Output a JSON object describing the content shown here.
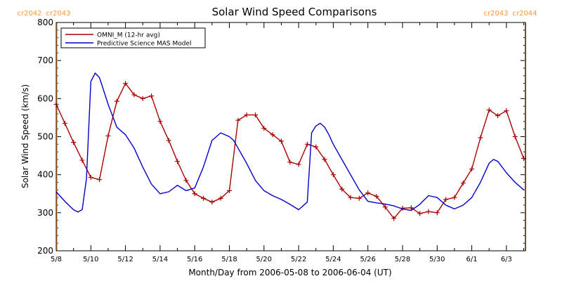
{
  "chart_data": {
    "type": "line",
    "title": "Solar Wind Speed Comparisons",
    "xlabel": "Month/Day from 2006-05-08 to 2006-06-04 (UT)",
    "ylabel": "Solar Wind Speed (km/s)",
    "ylim": [
      200,
      800
    ],
    "xlim_days": [
      0,
      27
    ],
    "y_ticks": [
      200,
      300,
      400,
      500,
      600,
      700,
      800
    ],
    "x_ticks": [
      {
        "day": 0,
        "label": "5/8"
      },
      {
        "day": 2,
        "label": "5/10"
      },
      {
        "day": 4,
        "label": "5/12"
      },
      {
        "day": 6,
        "label": "5/14"
      },
      {
        "day": 8,
        "label": "5/16"
      },
      {
        "day": 10,
        "label": "5/18"
      },
      {
        "day": 12,
        "label": "5/20"
      },
      {
        "day": 14,
        "label": "5/22"
      },
      {
        "day": 16,
        "label": "5/24"
      },
      {
        "day": 18,
        "label": "5/26"
      },
      {
        "day": 20,
        "label": "5/28"
      },
      {
        "day": 22,
        "label": "5/30"
      },
      {
        "day": 24,
        "label": "6/1"
      },
      {
        "day": 26,
        "label": "6/3"
      }
    ],
    "carrington_markers": [
      {
        "day": 0.03,
        "left_label": "cr2042",
        "right_label": "cr2043",
        "color": "#ff9933"
      },
      {
        "day": 27.1,
        "left_label": "cr2043",
        "right_label": "cr2044",
        "color": "#ff9933"
      }
    ],
    "legend_position": "top-left",
    "series": [
      {
        "name": "OMNI_M (12-hr avg)",
        "color": "#aa0000",
        "marker": "plus",
        "x": [
          0.0,
          0.5,
          1.0,
          1.5,
          2.0,
          2.5,
          3.0,
          3.5,
          4.0,
          4.5,
          5.0,
          5.5,
          6.0,
          6.5,
          7.0,
          7.5,
          8.0,
          8.5,
          9.0,
          9.5,
          10.0,
          10.5,
          11.0,
          11.5,
          12.0,
          12.5,
          13.0,
          13.5,
          14.0,
          14.5,
          15.0,
          15.5,
          16.0,
          16.5,
          17.0,
          17.5,
          18.0,
          18.5,
          19.0,
          19.5,
          20.0,
          20.5,
          21.0,
          21.5,
          22.0,
          22.5,
          23.0,
          23.5,
          24.0,
          24.5,
          25.0,
          25.5,
          26.0,
          26.5,
          27.0
        ],
        "y": [
          585,
          535,
          485,
          438,
          393,
          387,
          502,
          593,
          640,
          610,
          600,
          607,
          540,
          490,
          435,
          385,
          350,
          338,
          328,
          338,
          358,
          543,
          557,
          557,
          522,
          505,
          488,
          433,
          427,
          480,
          473,
          440,
          400,
          362,
          340,
          338,
          352,
          343,
          315,
          285,
          312,
          313,
          298,
          303,
          300,
          335,
          340,
          378,
          415,
          497,
          570,
          555,
          568,
          500,
          443
        ]
      },
      {
        "name": "Predictive Science MAS Model",
        "color": "#0000cc",
        "marker": "none",
        "x": [
          0.0,
          0.5,
          1.0,
          1.25,
          1.5,
          1.75,
          2.0,
          2.25,
          2.5,
          2.75,
          3.0,
          3.25,
          3.5,
          4.0,
          4.5,
          5.0,
          5.5,
          6.0,
          6.5,
          7.0,
          7.5,
          8.0,
          8.5,
          9.0,
          9.5,
          10.0,
          10.25,
          10.5,
          11.0,
          11.5,
          12.0,
          12.5,
          13.0,
          13.5,
          14.0,
          14.5,
          14.75,
          15.0,
          15.25,
          15.5,
          15.75,
          16.0,
          16.5,
          17.0,
          17.5,
          18.0,
          18.5,
          19.0,
          19.5,
          20.0,
          20.5,
          21.0,
          21.5,
          22.0,
          22.5,
          23.0,
          23.5,
          24.0,
          24.5,
          25.0,
          25.25,
          25.5,
          26.0,
          26.5,
          27.0
        ],
        "y": [
          355,
          330,
          308,
          302,
          308,
          390,
          645,
          667,
          655,
          620,
          585,
          555,
          525,
          505,
          470,
          420,
          375,
          350,
          355,
          372,
          358,
          365,
          420,
          490,
          510,
          500,
          490,
          470,
          430,
          385,
          358,
          345,
          335,
          322,
          308,
          328,
          510,
          528,
          535,
          525,
          505,
          480,
          440,
          400,
          360,
          330,
          326,
          323,
          318,
          310,
          306,
          322,
          345,
          340,
          320,
          310,
          320,
          340,
          380,
          430,
          440,
          435,
          405,
          380,
          360
        ]
      }
    ]
  }
}
